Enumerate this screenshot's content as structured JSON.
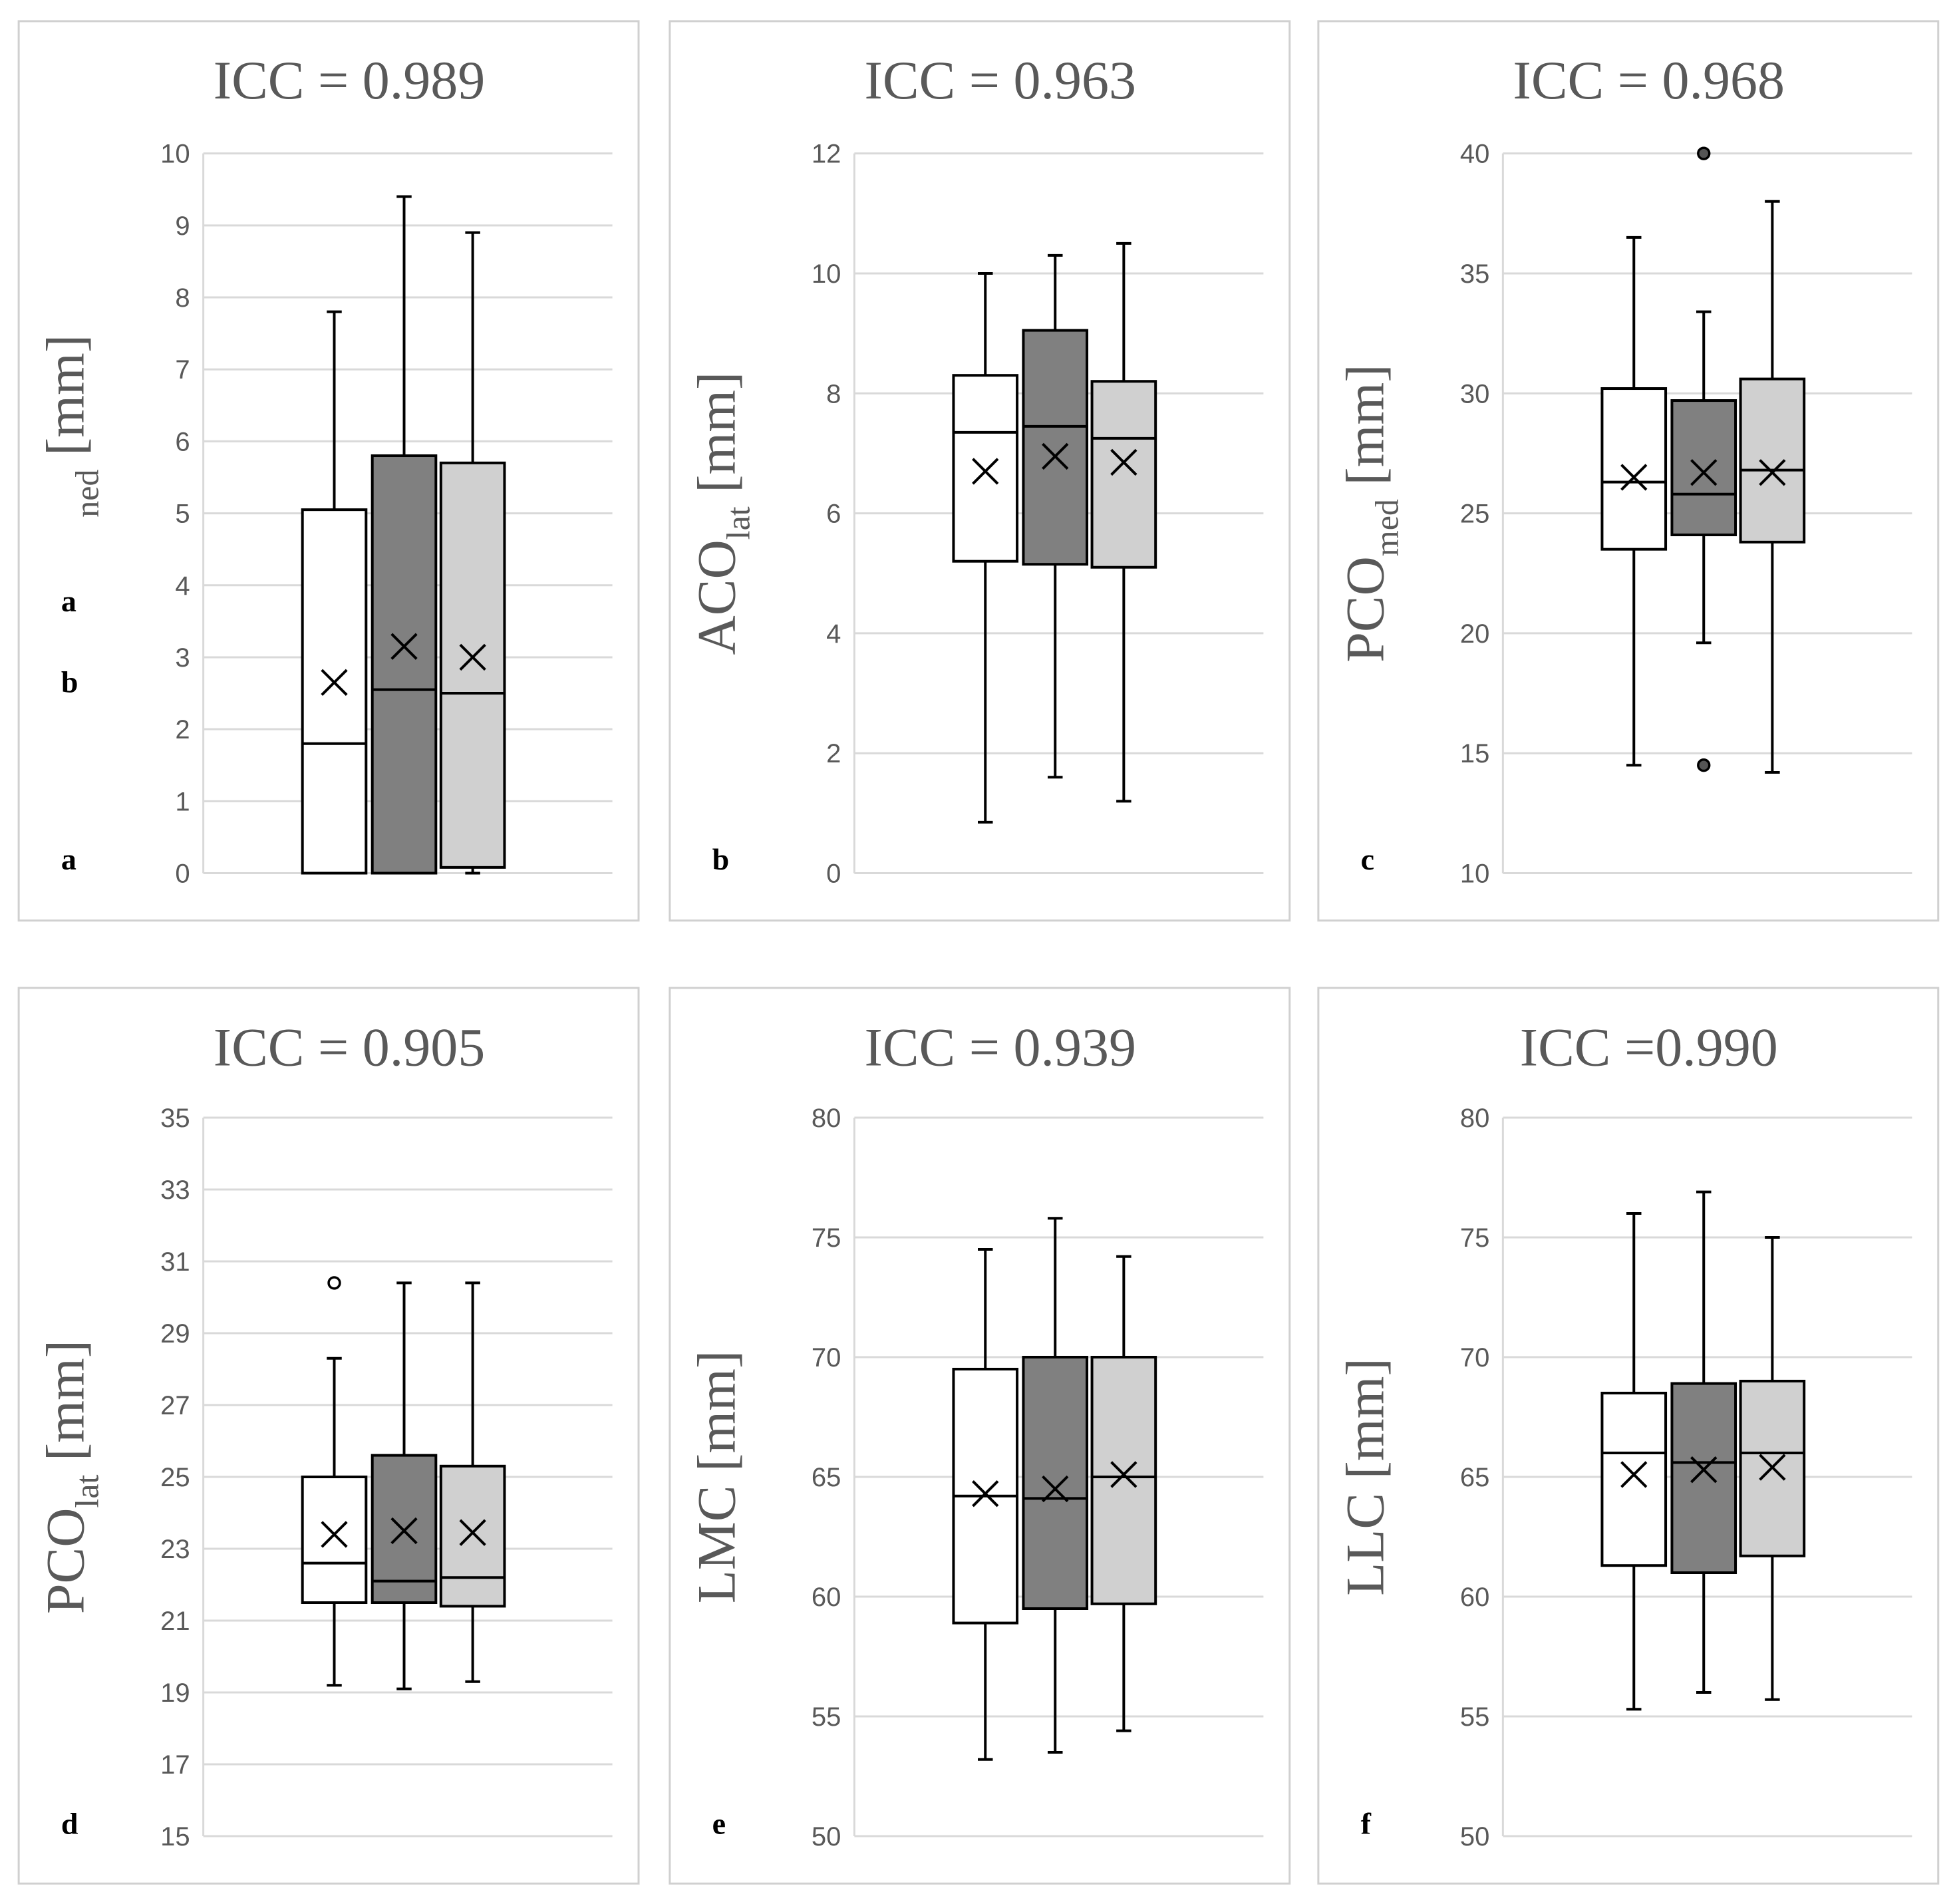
{
  "series_colors": [
    "#ffffff",
    "#808080",
    "#d0d0d0"
  ],
  "outlier_colors": [
    "#ffffff",
    "#555555",
    "#d0d0d0"
  ],
  "chart_data": [
    {
      "type": "box",
      "panel": "a",
      "title": "ICC = 0.989",
      "ylabel": {
        "main": "",
        "sub": "ned",
        "unit": " [mm]"
      },
      "extra_letters": [
        "a",
        "b"
      ],
      "ylim": [
        0,
        10
      ],
      "yticks": [
        0,
        1,
        2,
        3,
        4,
        5,
        6,
        7,
        8,
        9,
        10
      ],
      "tick_labels": [
        "0",
        "1",
        "2",
        "3",
        "4",
        "5",
        "6",
        "7",
        "8",
        "9",
        "10"
      ],
      "boxes": [
        {
          "min": 0,
          "q1": 0,
          "median": 1.8,
          "q3": 5.05,
          "max": 7.8,
          "mean": 2.65,
          "outliers": []
        },
        {
          "min": 0,
          "q1": 0,
          "median": 2.55,
          "q3": 5.8,
          "max": 9.4,
          "mean": 3.15,
          "outliers": []
        },
        {
          "min": 0,
          "q1": 0.08,
          "median": 2.5,
          "q3": 5.7,
          "max": 8.9,
          "mean": 3.0,
          "outliers": []
        }
      ]
    },
    {
      "type": "box",
      "panel": "b",
      "title": "ICC = 0.963",
      "ylabel": {
        "main": "ACO",
        "sub": "lat",
        "unit": " [mm]"
      },
      "extra_letters": [],
      "ylim": [
        0,
        12
      ],
      "yticks": [
        0,
        2,
        4,
        6,
        8,
        10,
        12
      ],
      "tick_labels": [
        "0",
        "2",
        "4",
        "6",
        "8",
        "10",
        "12"
      ],
      "boxes": [
        {
          "min": 0.85,
          "q1": 5.2,
          "median": 7.35,
          "q3": 8.3,
          "max": 10.0,
          "mean": 6.7,
          "outliers": []
        },
        {
          "min": 1.6,
          "q1": 5.15,
          "median": 7.45,
          "q3": 9.05,
          "max": 10.3,
          "mean": 6.95,
          "outliers": []
        },
        {
          "min": 1.2,
          "q1": 5.1,
          "median": 7.25,
          "q3": 8.2,
          "max": 10.5,
          "mean": 6.85,
          "outliers": []
        }
      ]
    },
    {
      "type": "box",
      "panel": "c",
      "title": "ICC = 0.968",
      "ylabel": {
        "main": "PCO",
        "sub": "med",
        "unit": " [mm]"
      },
      "extra_letters": [],
      "ylim": [
        10,
        40
      ],
      "yticks": [
        10,
        15,
        20,
        25,
        30,
        35,
        40
      ],
      "tick_labels": [
        "10",
        "15",
        "20",
        "25",
        "30",
        "35",
        "40"
      ],
      "boxes": [
        {
          "min": 14.5,
          "q1": 23.5,
          "median": 26.3,
          "q3": 30.2,
          "max": 36.5,
          "mean": 26.5,
          "outliers": []
        },
        {
          "min": 19.6,
          "q1": 24.1,
          "median": 25.8,
          "q3": 29.7,
          "max": 33.4,
          "mean": 26.7,
          "outliers": [
            40,
            14.5
          ]
        },
        {
          "min": 14.2,
          "q1": 23.8,
          "median": 26.8,
          "q3": 30.6,
          "max": 38.0,
          "mean": 26.7,
          "outliers": []
        }
      ]
    },
    {
      "type": "box",
      "panel": "d",
      "title": "ICC = 0.905",
      "ylabel": {
        "main": "PCO",
        "sub": "lat",
        "unit": " [mm]"
      },
      "extra_letters": [],
      "ylim": [
        15,
        35
      ],
      "yticks": [
        15,
        17,
        19,
        21,
        23,
        25,
        27,
        29,
        31,
        33,
        35
      ],
      "tick_labels": [
        "15",
        "17",
        "19",
        "21",
        "23",
        "25",
        "27",
        "29",
        "31",
        "33",
        "35"
      ],
      "boxes": [
        {
          "min": 19.2,
          "q1": 21.5,
          "median": 22.6,
          "q3": 25.0,
          "max": 28.3,
          "mean": 23.4,
          "outliers": [
            30.4
          ]
        },
        {
          "min": 19.1,
          "q1": 21.5,
          "median": 22.1,
          "q3": 25.6,
          "max": 30.4,
          "mean": 23.5,
          "outliers": []
        },
        {
          "min": 19.3,
          "q1": 21.4,
          "median": 22.2,
          "q3": 25.3,
          "max": 30.4,
          "mean": 23.45,
          "outliers": []
        }
      ]
    },
    {
      "type": "box",
      "panel": "e",
      "title": "ICC = 0.939",
      "ylabel": {
        "main": "LMC",
        "sub": "",
        "unit": " [mm]"
      },
      "extra_letters": [],
      "ylim": [
        50,
        80
      ],
      "yticks": [
        50,
        55,
        60,
        65,
        70,
        75,
        80
      ],
      "tick_labels": [
        "50",
        "55",
        "60",
        "65",
        "70",
        "75",
        "80"
      ],
      "boxes": [
        {
          "min": 53.2,
          "q1": 58.9,
          "median": 64.2,
          "q3": 69.5,
          "max": 74.5,
          "mean": 64.3,
          "outliers": []
        },
        {
          "min": 53.5,
          "q1": 59.5,
          "median": 64.1,
          "q3": 70.0,
          "max": 75.8,
          "mean": 64.5,
          "outliers": []
        },
        {
          "min": 54.4,
          "q1": 59.7,
          "median": 65.0,
          "q3": 70.0,
          "max": 74.2,
          "mean": 65.1,
          "outliers": []
        }
      ]
    },
    {
      "type": "box",
      "panel": "f",
      "title": "ICC =0.990",
      "ylabel": {
        "main": "LLC",
        "sub": "",
        "unit": " [mm]"
      },
      "extra_letters": [],
      "ylim": [
        50,
        80
      ],
      "yticks": [
        50,
        55,
        60,
        65,
        70,
        75,
        80
      ],
      "tick_labels": [
        "50",
        "55",
        "60",
        "65",
        "70",
        "75",
        "80"
      ],
      "boxes": [
        {
          "min": 55.3,
          "q1": 61.3,
          "median": 66.0,
          "q3": 68.5,
          "max": 76.0,
          "mean": 65.1,
          "outliers": []
        },
        {
          "min": 56.0,
          "q1": 61.0,
          "median": 65.6,
          "q3": 68.9,
          "max": 76.9,
          "mean": 65.3,
          "outliers": []
        },
        {
          "min": 55.7,
          "q1": 61.7,
          "median": 66.0,
          "q3": 69.0,
          "max": 75.0,
          "mean": 65.4,
          "outliers": []
        }
      ]
    }
  ]
}
